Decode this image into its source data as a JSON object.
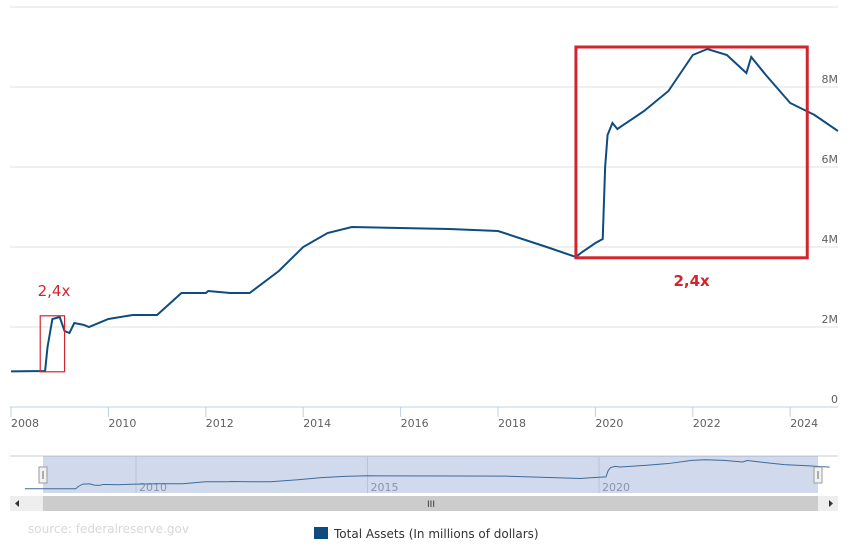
{
  "chart_data": {
    "type": "line",
    "title": "",
    "xlabel": "",
    "ylabel": "",
    "xlim": [
      2008,
      2025
    ],
    "ylim": [
      0,
      10
    ],
    "y_unit": "M",
    "grid": true,
    "legend_placement": "bottom",
    "x_ticks": [
      "2008",
      "2010",
      "2012",
      "2014",
      "2016",
      "2018",
      "2020",
      "2022",
      "2024"
    ],
    "y_ticks": [
      {
        "v": 0,
        "label": "0"
      },
      {
        "v": 2,
        "label": "2M"
      },
      {
        "v": 4,
        "label": "4M"
      },
      {
        "v": 6,
        "label": "6M"
      },
      {
        "v": 8,
        "label": "8M"
      }
    ],
    "series": [
      {
        "name": "Total Assets (In millions of dollars)",
        "color": "#0f4c7e",
        "x": [
          2008.0,
          2008.7,
          2008.75,
          2008.85,
          2009.0,
          2009.1,
          2009.2,
          2009.3,
          2009.5,
          2009.6,
          2010.0,
          2010.5,
          2011.0,
          2011.5,
          2012.0,
          2012.05,
          2012.5,
          2012.9,
          2013.5,
          2014.0,
          2014.5,
          2015.0,
          2017.0,
          2018.0,
          2019.0,
          2019.6,
          2019.7,
          2020.0,
          2020.15,
          2020.2,
          2020.25,
          2020.35,
          2020.45,
          2021.0,
          2021.5,
          2022.0,
          2022.3,
          2022.7,
          2023.1,
          2023.2,
          2023.5,
          2024.0,
          2024.5,
          2024.98
        ],
        "y": [
          0.89,
          0.9,
          1.5,
          2.2,
          2.25,
          1.9,
          1.85,
          2.1,
          2.05,
          2.0,
          2.2,
          2.3,
          2.3,
          2.85,
          2.85,
          2.9,
          2.85,
          2.85,
          3.4,
          4.0,
          4.35,
          4.5,
          4.45,
          4.4,
          4.0,
          3.75,
          3.85,
          4.1,
          4.2,
          6.0,
          6.8,
          7.1,
          6.95,
          7.4,
          7.9,
          8.8,
          8.95,
          8.8,
          8.35,
          8.75,
          8.3,
          7.6,
          7.3,
          6.9
        ]
      }
    ],
    "annotations": [
      {
        "label": "2,4x",
        "from": 2008.6,
        "to": 2009.1,
        "ymin": 0.88,
        "ymax": 2.28,
        "color": "#d0262f"
      },
      {
        "label": "2,4x",
        "from": 2019.6,
        "to": 2024.35,
        "ymin": 3.73,
        "ymax": 9.0,
        "color": "#d0262f"
      }
    ]
  },
  "navigator": {
    "labels": [
      "2010",
      "2015",
      "2020"
    ]
  },
  "source": "source: federalreserve.gov"
}
